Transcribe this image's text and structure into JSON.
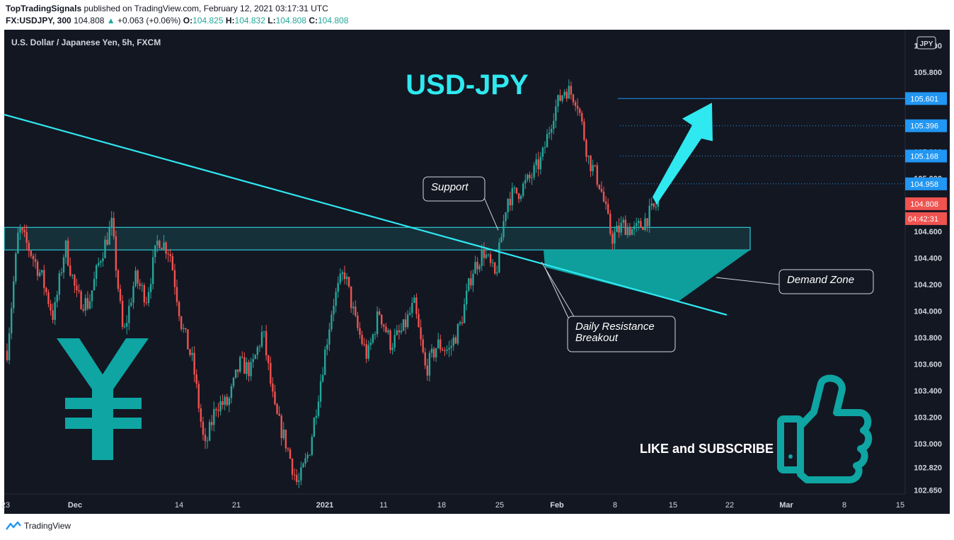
{
  "header": {
    "publisher": "TopTradingSignals",
    "published_text": "published on TradingView.com, February 12, 2021 03:17:31 UTC",
    "symbol": "FX:USDJPY, 300",
    "last": "104.808",
    "change": "+0.063 (+0.06%)",
    "o_label": "O:",
    "o": "104.825",
    "h_label": "H:",
    "h": "104.832",
    "l_label": "L:",
    "l": "104.808",
    "c_label": "C:",
    "c": "104.808"
  },
  "footer": {
    "brand": "TradingView"
  },
  "colors": {
    "bg": "#131722",
    "up": "#26a69a",
    "down": "#ef5350",
    "cyan": "#2fe8f0",
    "teal": "#0ea5a3",
    "label_blue": "#2196f3"
  },
  "chart_data": {
    "type": "candlestick",
    "title": "USD-JPY",
    "subtitle": "U.S. Dollar / Japanese Yen, 5h, FXCM",
    "currency_badge": "JPY",
    "ylim": [
      102.62,
      106.12
    ],
    "y_ticks": [
      "106.000",
      "105.800",
      "105.600",
      "105.400",
      "105.200",
      "105.000",
      "104.800",
      "104.600",
      "104.400",
      "104.200",
      "104.000",
      "103.800",
      "103.600",
      "103.400",
      "103.200",
      "103.000",
      "102.820",
      "102.650"
    ],
    "x_ticks": [
      "23",
      "Dec",
      "14",
      "21",
      "2021",
      "11",
      "18",
      "25",
      "Feb",
      "8",
      "15",
      "22",
      "Mar",
      "8",
      "15"
    ],
    "price_labels": [
      {
        "value": 105.601,
        "text": "105.601"
      },
      {
        "value": 105.396,
        "text": "105.396"
      },
      {
        "value": 105.168,
        "text": "105.168"
      },
      {
        "value": 104.958,
        "text": "104.958"
      }
    ],
    "last_price": {
      "value": 104.808,
      "text": "104.808",
      "countdown": "04:42:31"
    },
    "anchors": [
      [
        103.7,
        "s"
      ],
      [
        104.62,
        "s"
      ],
      [
        104.45,
        "s"
      ],
      [
        104.25,
        "d"
      ],
      [
        103.95,
        "d"
      ],
      [
        104.5,
        "u"
      ],
      [
        104.1,
        "d"
      ],
      [
        104.05,
        "u"
      ],
      [
        104.4,
        "u"
      ],
      [
        104.65,
        "u"
      ],
      [
        103.8,
        "d"
      ],
      [
        104.25,
        "u"
      ],
      [
        104.1,
        "d"
      ],
      [
        104.55,
        "u"
      ],
      [
        104.45,
        "u"
      ],
      [
        103.9,
        "d"
      ],
      [
        103.6,
        "d"
      ],
      [
        102.95,
        "d"
      ],
      [
        103.3,
        "u"
      ],
      [
        103.3,
        "d"
      ],
      [
        103.6,
        "u"
      ],
      [
        103.55,
        "d"
      ],
      [
        103.85,
        "u"
      ],
      [
        103.25,
        "d"
      ],
      [
        103.0,
        "d"
      ],
      [
        102.68,
        "d"
      ],
      [
        102.95,
        "u"
      ],
      [
        103.5,
        "u"
      ],
      [
        104.05,
        "u"
      ],
      [
        104.3,
        "u"
      ],
      [
        103.9,
        "d"
      ],
      [
        103.65,
        "d"
      ],
      [
        104.0,
        "u"
      ],
      [
        103.75,
        "d"
      ],
      [
        103.85,
        "u"
      ],
      [
        104.05,
        "u"
      ],
      [
        103.55,
        "d"
      ],
      [
        103.75,
        "u"
      ],
      [
        103.7,
        "d"
      ],
      [
        103.9,
        "u"
      ],
      [
        104.3,
        "u"
      ],
      [
        104.45,
        "u"
      ],
      [
        104.25,
        "d"
      ],
      [
        104.85,
        "u"
      ],
      [
        104.9,
        "u"
      ],
      [
        105.0,
        "u"
      ],
      [
        105.15,
        "u"
      ],
      [
        105.5,
        "u"
      ],
      [
        105.68,
        "u"
      ],
      [
        105.6,
        "d"
      ],
      [
        105.15,
        "d"
      ],
      [
        104.95,
        "d"
      ],
      [
        104.55,
        "d"
      ],
      [
        104.65,
        "u"
      ],
      [
        104.6,
        "d"
      ],
      [
        104.7,
        "u"
      ],
      [
        104.81,
        "u"
      ]
    ],
    "annotations": {
      "support": "Support",
      "demand_zone": "Demand Zone",
      "breakout_line1": "Daily Resistance",
      "breakout_line2": "Breakout",
      "cta": "LIKE and SUBSCRIBE"
    }
  }
}
